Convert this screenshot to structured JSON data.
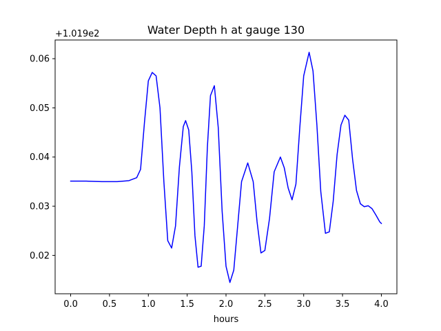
{
  "chart_data": {
    "type": "line",
    "title": "Water Depth h at gauge 130",
    "xlabel": "hours",
    "ylabel": "",
    "y_offset_label": "+1.019e2",
    "xlim": [
      -0.2,
      4.2
    ],
    "ylim": [
      0.0122,
      0.0638
    ],
    "x_ticks": [
      0.0,
      0.5,
      1.0,
      1.5,
      2.0,
      2.5,
      3.0,
      3.5,
      4.0
    ],
    "x_tick_labels": [
      "0.0",
      "0.5",
      "1.0",
      "1.5",
      "2.0",
      "2.5",
      "3.0",
      "3.5",
      "4.0"
    ],
    "y_ticks": [
      0.02,
      0.03,
      0.04,
      0.05,
      0.06
    ],
    "y_tick_labels": [
      "0.02",
      "0.03",
      "0.04",
      "0.05",
      "0.06"
    ],
    "grid": false,
    "legend": "none",
    "series": [
      {
        "color": "#0000ff",
        "x": [
          0.0,
          0.2,
          0.4,
          0.6,
          0.75,
          0.85,
          0.9,
          0.95,
          1.0,
          1.05,
          1.1,
          1.15,
          1.2,
          1.25,
          1.3,
          1.35,
          1.4,
          1.45,
          1.48,
          1.52,
          1.56,
          1.6,
          1.64,
          1.68,
          1.72,
          1.76,
          1.8,
          1.85,
          1.9,
          1.95,
          2.0,
          2.05,
          2.1,
          2.15,
          2.2,
          2.28,
          2.35,
          2.4,
          2.45,
          2.5,
          2.56,
          2.62,
          2.7,
          2.75,
          2.8,
          2.85,
          2.9,
          2.95,
          3.0,
          3.07,
          3.12,
          3.17,
          3.22,
          3.28,
          3.33,
          3.38,
          3.43,
          3.48,
          3.53,
          3.58,
          3.63,
          3.68,
          3.73,
          3.78,
          3.83,
          3.88,
          3.93,
          3.98,
          4.0
        ],
        "y": [
          0.0351,
          0.0351,
          0.035,
          0.035,
          0.0352,
          0.0358,
          0.0375,
          0.047,
          0.0555,
          0.0572,
          0.0565,
          0.05,
          0.035,
          0.023,
          0.0215,
          0.026,
          0.038,
          0.0462,
          0.0474,
          0.0455,
          0.037,
          0.024,
          0.0176,
          0.0178,
          0.026,
          0.042,
          0.0525,
          0.0545,
          0.046,
          0.029,
          0.0178,
          0.0145,
          0.017,
          0.026,
          0.035,
          0.0388,
          0.035,
          0.0268,
          0.0205,
          0.021,
          0.0275,
          0.037,
          0.04,
          0.0378,
          0.0337,
          0.0313,
          0.0345,
          0.046,
          0.0565,
          0.0613,
          0.0575,
          0.0465,
          0.033,
          0.0245,
          0.0248,
          0.031,
          0.0405,
          0.0465,
          0.0485,
          0.0475,
          0.0395,
          0.0332,
          0.0305,
          0.0299,
          0.0301,
          0.0295,
          0.0282,
          0.0268,
          0.0265
        ]
      }
    ]
  }
}
